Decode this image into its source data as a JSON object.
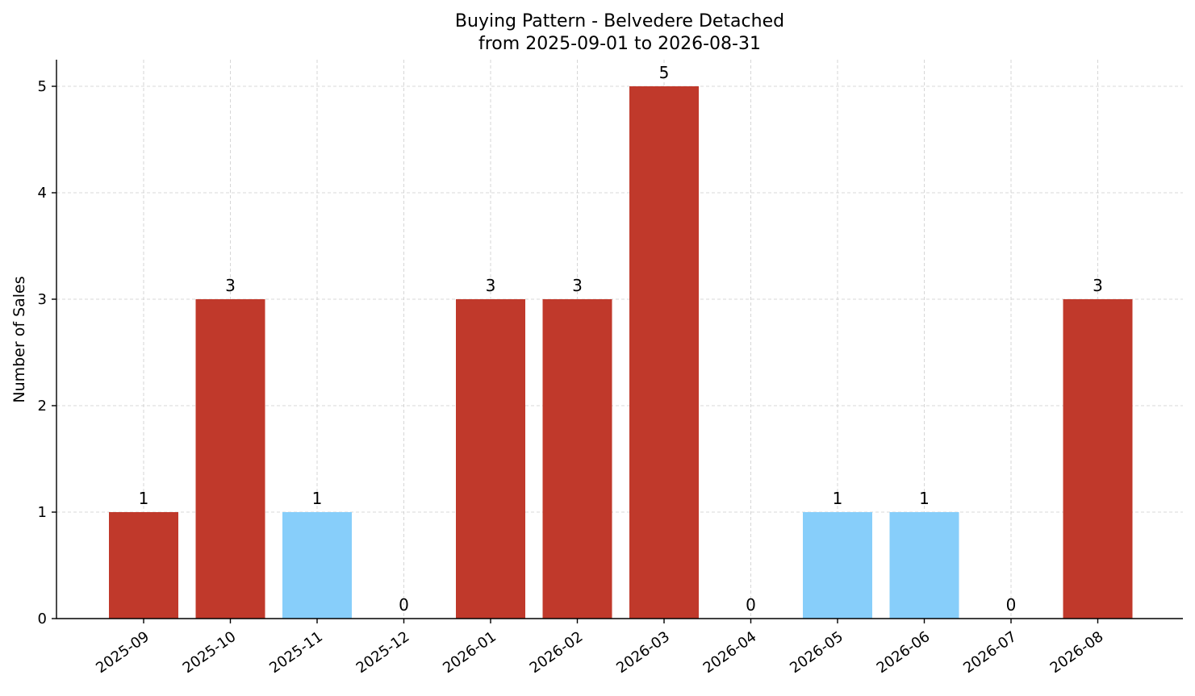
{
  "chart_data": {
    "type": "bar",
    "title": "Buying Pattern - Belvedere Detached",
    "subtitle": "from 2025-09-01 to 2026-08-31",
    "xlabel": "",
    "ylabel": "Number of Sales",
    "ylim": [
      0,
      5.25
    ],
    "yticks": [
      0,
      1,
      2,
      3,
      4,
      5
    ],
    "grid": true,
    "categories": [
      "2025-09",
      "2025-10",
      "2025-11",
      "2025-12",
      "2026-01",
      "2026-02",
      "2026-03",
      "2026-04",
      "2026-05",
      "2026-06",
      "2026-07",
      "2026-08"
    ],
    "values": [
      1,
      3,
      1,
      0,
      3,
      3,
      5,
      0,
      1,
      1,
      0,
      3
    ],
    "bar_colors": [
      "#c0392b",
      "#c0392b",
      "#87cefa",
      "#c0392b",
      "#c0392b",
      "#c0392b",
      "#c0392b",
      "#c0392b",
      "#87cefa",
      "#87cefa",
      "#c0392b",
      "#c0392b"
    ]
  }
}
